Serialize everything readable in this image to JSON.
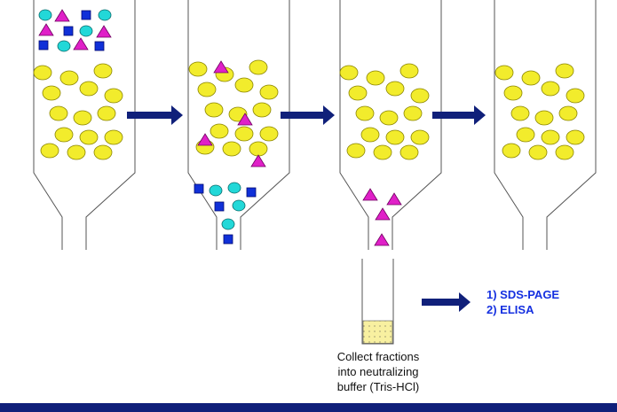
{
  "collect_lines": [
    "Collect fractions",
    "into neutralizing",
    "buffer (Tris-HCl)"
  ],
  "analysis": [
    "1) SDS-PAGE",
    "2) ELISA"
  ]
}
